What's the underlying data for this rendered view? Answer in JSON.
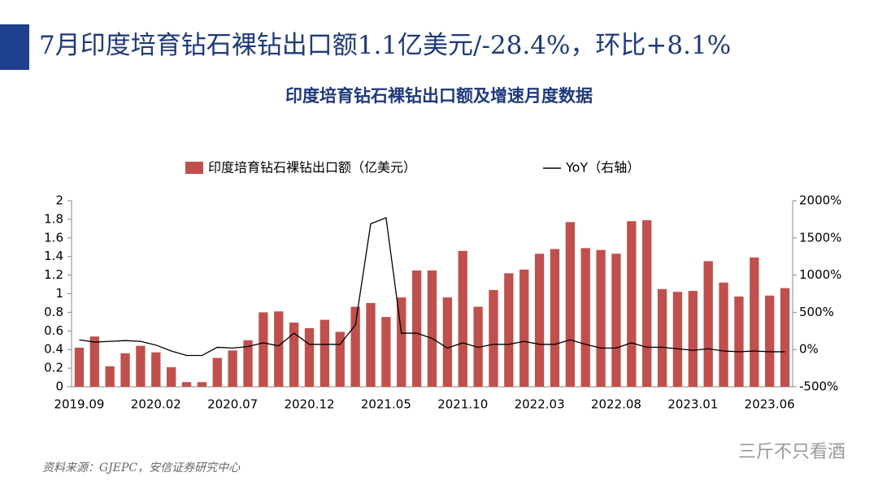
{
  "header": {
    "title": "7月印度培育钻石裸钻出口额1.1亿美元/-28.4%，环比+8.1%"
  },
  "chart_data": {
    "type": "bar_line",
    "title": "印度培育钻石裸钻出口额及增速月度数据",
    "categories": [
      "2019.09",
      null,
      null,
      null,
      null,
      "2020.02",
      null,
      null,
      null,
      null,
      "2020.07",
      null,
      null,
      null,
      null,
      "2020.12",
      null,
      null,
      null,
      null,
      "2021.05",
      null,
      null,
      null,
      null,
      "2021.10",
      null,
      null,
      null,
      null,
      "2022.03",
      null,
      null,
      null,
      null,
      "2022.08",
      null,
      null,
      null,
      null,
      "2023.01",
      null,
      null,
      null,
      null,
      "2023.06",
      null
    ],
    "series": [
      {
        "name": "印度培育钻石裸钻出口额（亿美元）",
        "color": "#c0504d",
        "type": "bar",
        "values": [
          0.42,
          0.54,
          0.22,
          0.36,
          0.44,
          0.37,
          0.21,
          0.05,
          0.05,
          0.31,
          0.39,
          0.5,
          0.8,
          0.81,
          0.69,
          0.63,
          0.72,
          0.59,
          0.86,
          0.9,
          0.75,
          0.96,
          1.25,
          1.25,
          0.96,
          1.46,
          0.86,
          1.04,
          1.22,
          1.26,
          1.43,
          1.48,
          1.77,
          1.49,
          1.47,
          1.43,
          1.78,
          1.79,
          1.05,
          1.02,
          1.03,
          1.35,
          1.12,
          0.97,
          1.39,
          0.98,
          1.06
        ]
      },
      {
        "name": "YoY（右轴）",
        "color": "#000000",
        "type": "line",
        "axis": "y2",
        "values": [
          130,
          100,
          110,
          120,
          110,
          60,
          -20,
          -80,
          -80,
          30,
          20,
          40,
          90,
          50,
          220,
          70,
          70,
          70,
          330,
          1690,
          1770,
          220,
          220,
          150,
          20,
          90,
          30,
          70,
          70,
          110,
          70,
          70,
          130,
          70,
          20,
          20,
          90,
          30,
          30,
          10,
          -10,
          10,
          -20,
          -30,
          -20,
          -30,
          -30
        ]
      }
    ],
    "ylim": [
      0,
      2
    ],
    "yticks": [
      0,
      0.2,
      0.4,
      0.6,
      0.8,
      1,
      1.2,
      1.4,
      1.6,
      1.8,
      2
    ],
    "y2lim": [
      -500,
      2000
    ],
    "y2ticks": [
      {
        "value": -500,
        "label": "-500%"
      },
      {
        "value": 0,
        "label": "0%"
      },
      {
        "value": 500,
        "label": "500%"
      },
      {
        "value": 1000,
        "label": "1000%"
      },
      {
        "value": 1500,
        "label": "1500%"
      },
      {
        "value": 2000,
        "label": "2000%"
      }
    ],
    "source": "资料来源：GJEPC，安信证券研究中心"
  },
  "watermark": "三斤不只看酒"
}
